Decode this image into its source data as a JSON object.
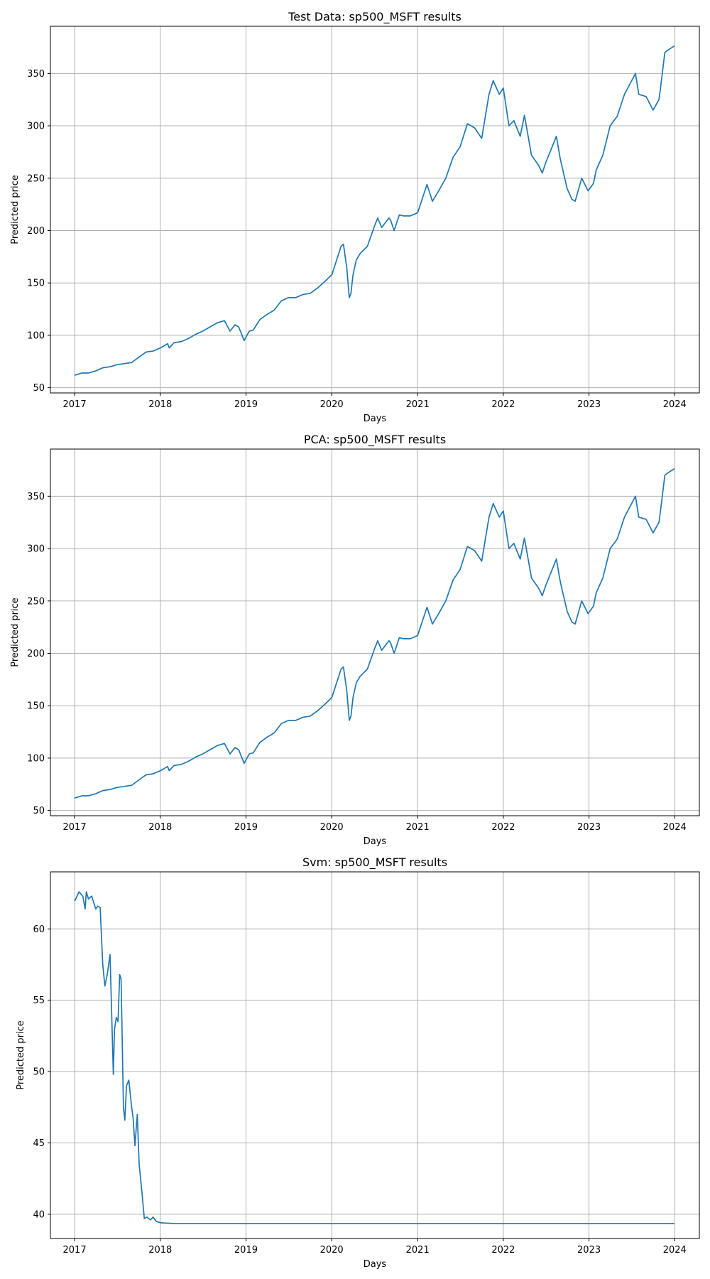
{
  "chart_data": [
    {
      "type": "line",
      "title": "Test Data: sp500_MSFT results",
      "xlabel": "Days",
      "ylabel": "Predicted price",
      "xlim": [
        "2016-09-20",
        "2024-04-15"
      ],
      "ylim": [
        45,
        395
      ],
      "xticks": [
        "2017",
        "2018",
        "2019",
        "2020",
        "2021",
        "2022",
        "2023",
        "2024"
      ],
      "yticks": [
        50,
        100,
        150,
        200,
        250,
        300,
        350
      ],
      "grid": true,
      "color": "#1f77b4",
      "series": [
        {
          "x": [
            "2017-01-03",
            "2017-02-01",
            "2017-03-01",
            "2017-04-01",
            "2017-05-01",
            "2017-06-01",
            "2017-07-01",
            "2017-08-01",
            "2017-09-01",
            "2017-10-01",
            "2017-11-01",
            "2017-12-01",
            "2018-01-02",
            "2018-02-01",
            "2018-02-08",
            "2018-03-01",
            "2018-04-01",
            "2018-05-01",
            "2018-06-01",
            "2018-07-01",
            "2018-08-01",
            "2018-09-01",
            "2018-10-01",
            "2018-10-25",
            "2018-11-15",
            "2018-12-01",
            "2018-12-24",
            "2019-01-15",
            "2019-02-01",
            "2019-03-01",
            "2019-04-01",
            "2019-05-01",
            "2019-06-01",
            "2019-07-01",
            "2019-08-01",
            "2019-09-01",
            "2019-10-01",
            "2019-11-01",
            "2019-12-01",
            "2020-01-02",
            "2020-02-10",
            "2020-02-20",
            "2020-03-05",
            "2020-03-16",
            "2020-03-23",
            "2020-04-01",
            "2020-04-15",
            "2020-05-01",
            "2020-06-01",
            "2020-07-01",
            "2020-07-15",
            "2020-08-01",
            "2020-09-01",
            "2020-09-08",
            "2020-09-23",
            "2020-10-15",
            "2020-11-01",
            "2020-12-01",
            "2021-01-01",
            "2021-02-10",
            "2021-03-05",
            "2021-04-01",
            "2021-05-01",
            "2021-06-01",
            "2021-07-01",
            "2021-08-01",
            "2021-09-01",
            "2021-10-01",
            "2021-11-01",
            "2021-11-19",
            "2021-12-15",
            "2022-01-01",
            "2022-01-25",
            "2022-02-15",
            "2022-03-14",
            "2022-04-01",
            "2022-05-01",
            "2022-06-01",
            "2022-06-16",
            "2022-07-01",
            "2022-08-15",
            "2022-09-01",
            "2022-09-30",
            "2022-10-20",
            "2022-11-03",
            "2022-12-01",
            "2022-12-28",
            "2023-01-20",
            "2023-02-01",
            "2023-03-01",
            "2023-04-01",
            "2023-05-01",
            "2023-06-01",
            "2023-07-18",
            "2023-08-01",
            "2023-09-01",
            "2023-10-01",
            "2023-10-26",
            "2023-11-01",
            "2023-11-20",
            "2023-12-01",
            "2023-12-29"
          ],
          "y": [
            62,
            64,
            64,
            66,
            69,
            70,
            72,
            73,
            74,
            79,
            84,
            85,
            88,
            92,
            88,
            93,
            94,
            97,
            101,
            104,
            108,
            112,
            114,
            104,
            110,
            108,
            95,
            104,
            105,
            115,
            120,
            124,
            133,
            136,
            136,
            139,
            140,
            145,
            151,
            158,
            185,
            187,
            165,
            136,
            140,
            158,
            172,
            178,
            185,
            204,
            212,
            203,
            212,
            210,
            200,
            215,
            214,
            214,
            217,
            244,
            228,
            238,
            250,
            270,
            280,
            302,
            298,
            288,
            330,
            343,
            330,
            336,
            300,
            305,
            290,
            310,
            272,
            262,
            255,
            265,
            290,
            268,
            240,
            230,
            228,
            250,
            238,
            245,
            258,
            272,
            300,
            309,
            330,
            350,
            330,
            328,
            315,
            325,
            335,
            370,
            372,
            376
          ]
        }
      ]
    },
    {
      "type": "line",
      "title": "PCA: sp500_MSFT results",
      "xlabel": "Days",
      "ylabel": "Predicted price",
      "xlim": [
        "2016-09-20",
        "2024-04-15"
      ],
      "ylim": [
        45,
        395
      ],
      "xticks": [
        "2017",
        "2018",
        "2019",
        "2020",
        "2021",
        "2022",
        "2023",
        "2024"
      ],
      "yticks": [
        50,
        100,
        150,
        200,
        250,
        300,
        350
      ],
      "grid": true,
      "color": "#1f77b4",
      "series": [
        {
          "x": [
            "2017-01-03",
            "2017-02-01",
            "2017-03-01",
            "2017-04-01",
            "2017-05-01",
            "2017-06-01",
            "2017-07-01",
            "2017-08-01",
            "2017-09-01",
            "2017-10-01",
            "2017-11-01",
            "2017-12-01",
            "2018-01-02",
            "2018-02-01",
            "2018-02-08",
            "2018-03-01",
            "2018-04-01",
            "2018-05-01",
            "2018-06-01",
            "2018-07-01",
            "2018-08-01",
            "2018-09-01",
            "2018-10-01",
            "2018-10-25",
            "2018-11-15",
            "2018-12-01",
            "2018-12-24",
            "2019-01-15",
            "2019-02-01",
            "2019-03-01",
            "2019-04-01",
            "2019-05-01",
            "2019-06-01",
            "2019-07-01",
            "2019-08-01",
            "2019-09-01",
            "2019-10-01",
            "2019-11-01",
            "2019-12-01",
            "2020-01-02",
            "2020-02-10",
            "2020-02-20",
            "2020-03-05",
            "2020-03-16",
            "2020-03-23",
            "2020-04-01",
            "2020-04-15",
            "2020-05-01",
            "2020-06-01",
            "2020-07-01",
            "2020-07-15",
            "2020-08-01",
            "2020-09-01",
            "2020-09-08",
            "2020-09-23",
            "2020-10-15",
            "2020-11-01",
            "2020-12-01",
            "2021-01-01",
            "2021-02-10",
            "2021-03-05",
            "2021-04-01",
            "2021-05-01",
            "2021-06-01",
            "2021-07-01",
            "2021-08-01",
            "2021-09-01",
            "2021-10-01",
            "2021-11-01",
            "2021-11-19",
            "2021-12-15",
            "2022-01-01",
            "2022-01-25",
            "2022-02-15",
            "2022-03-14",
            "2022-04-01",
            "2022-05-01",
            "2022-06-01",
            "2022-06-16",
            "2022-07-01",
            "2022-08-15",
            "2022-09-01",
            "2022-09-30",
            "2022-10-20",
            "2022-11-03",
            "2022-12-01",
            "2022-12-28",
            "2023-01-20",
            "2023-02-01",
            "2023-03-01",
            "2023-04-01",
            "2023-05-01",
            "2023-06-01",
            "2023-07-18",
            "2023-08-01",
            "2023-09-01",
            "2023-10-01",
            "2023-10-26",
            "2023-11-01",
            "2023-11-20",
            "2023-12-01",
            "2023-12-29"
          ],
          "y": [
            62,
            64,
            64,
            66,
            69,
            70,
            72,
            73,
            74,
            79,
            84,
            85,
            88,
            92,
            88,
            93,
            94,
            97,
            101,
            104,
            108,
            112,
            114,
            104,
            110,
            108,
            95,
            104,
            105,
            115,
            120,
            124,
            133,
            136,
            136,
            139,
            140,
            145,
            151,
            158,
            185,
            187,
            165,
            136,
            140,
            158,
            172,
            178,
            185,
            204,
            212,
            203,
            212,
            210,
            200,
            215,
            214,
            214,
            217,
            244,
            228,
            238,
            250,
            270,
            280,
            302,
            298,
            288,
            330,
            343,
            330,
            336,
            300,
            305,
            290,
            310,
            272,
            262,
            255,
            265,
            290,
            268,
            240,
            230,
            228,
            250,
            238,
            245,
            258,
            272,
            300,
            309,
            330,
            350,
            330,
            328,
            315,
            325,
            335,
            370,
            372,
            376
          ]
        }
      ]
    },
    {
      "type": "line",
      "title": "Svm: sp500_MSFT results",
      "xlabel": "Days",
      "ylabel": "Predicted price",
      "xlim": [
        "2016-09-20",
        "2024-04-15"
      ],
      "ylim": [
        38.3,
        64.0
      ],
      "xticks": [
        "2017",
        "2018",
        "2019",
        "2020",
        "2021",
        "2022",
        "2023",
        "2024"
      ],
      "yticks": [
        40,
        45,
        50,
        55,
        60
      ],
      "grid": true,
      "color": "#1f77b4",
      "series": [
        {
          "x": [
            "2017-01-03",
            "2017-01-20",
            "2017-02-05",
            "2017-02-15",
            "2017-02-20",
            "2017-03-01",
            "2017-03-15",
            "2017-04-01",
            "2017-04-10",
            "2017-04-20",
            "2017-05-01",
            "2017-05-10",
            "2017-05-20",
            "2017-06-01",
            "2017-06-08",
            "2017-06-15",
            "2017-06-20",
            "2017-06-28",
            "2017-07-05",
            "2017-07-12",
            "2017-07-18",
            "2017-07-22",
            "2017-07-28",
            "2017-08-03",
            "2017-08-10",
            "2017-08-20",
            "2017-09-01",
            "2017-09-07",
            "2017-09-15",
            "2017-09-25",
            "2017-10-03",
            "2017-10-15",
            "2017-10-25",
            "2017-11-05",
            "2017-11-20",
            "2017-12-01",
            "2017-12-15",
            "2018-01-02",
            "2018-03-01",
            "2018-06-01",
            "2019-01-01",
            "2020-01-01",
            "2021-01-01",
            "2022-01-01",
            "2023-01-01",
            "2023-12-29"
          ],
          "y": [
            62.0,
            62.6,
            62.3,
            61.4,
            62.6,
            62.1,
            62.3,
            61.4,
            61.6,
            61.5,
            57.5,
            56.0,
            56.8,
            58.2,
            54.0,
            49.8,
            53.0,
            53.8,
            53.5,
            56.8,
            56.5,
            53.0,
            47.5,
            46.6,
            49.0,
            49.4,
            47.5,
            46.8,
            44.8,
            47.0,
            43.5,
            41.5,
            39.7,
            39.8,
            39.6,
            39.8,
            39.5,
            39.4,
            39.35,
            39.35,
            39.35,
            39.35,
            39.35,
            39.35,
            39.35,
            39.35
          ]
        }
      ]
    }
  ]
}
